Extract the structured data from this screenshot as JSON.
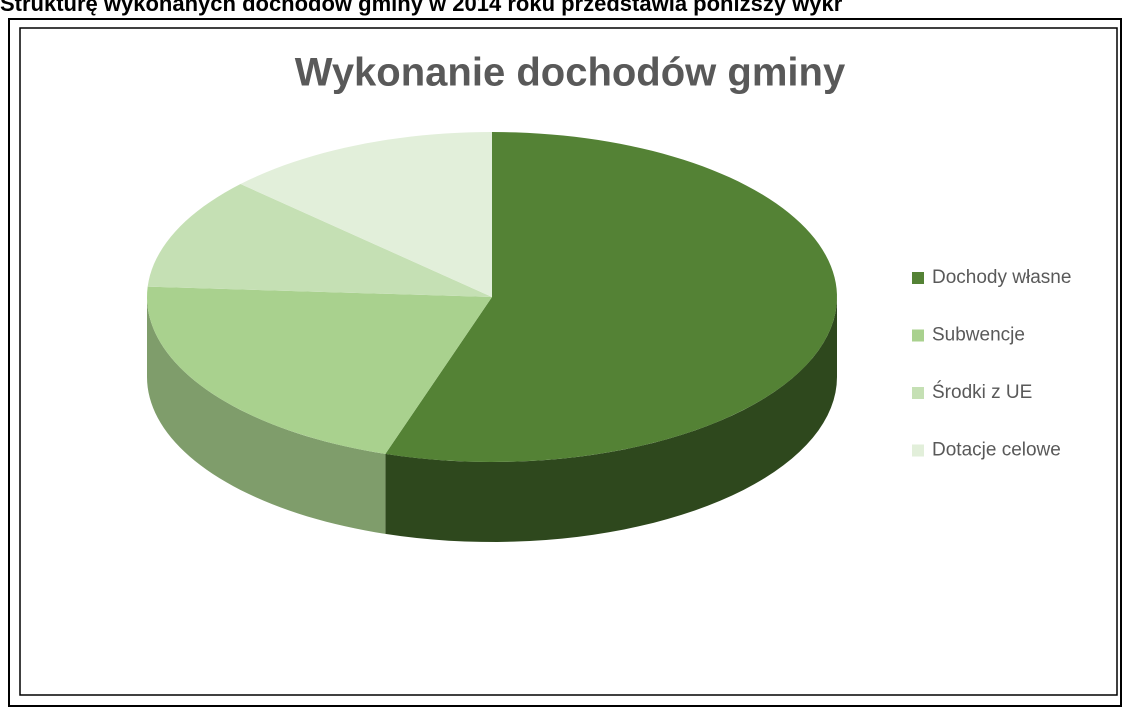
{
  "page_text": "Strukturę wykonanych dochodów gminy w 2014 roku przedstawia poniższy wykr",
  "chart_data": {
    "type": "pie",
    "title": "Wykonanie dochodów gminy",
    "categories": [
      "Dochody własne",
      "Subwencje",
      "Środki z UE",
      "Dotacje celowe"
    ],
    "values": [
      55,
      21,
      11,
      13
    ],
    "colors": [
      "#548235",
      "#a9d18e",
      "#c5e0b4",
      "#e2efda"
    ],
    "legend": "right"
  }
}
